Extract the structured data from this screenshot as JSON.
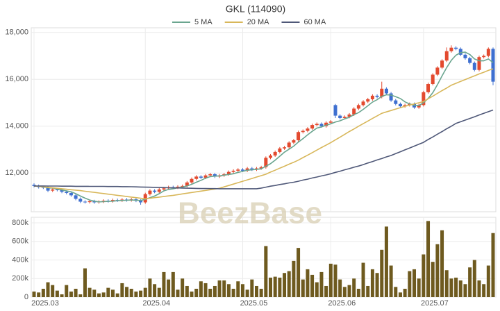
{
  "chart_data": [
    {
      "type": "candlestick",
      "title": "GKL (114090)",
      "watermark": "BeezBase",
      "up_color": "#e34a2f",
      "down_color": "#3e6fd0",
      "open": [
        11500,
        11450,
        11400,
        11380,
        11250,
        11300,
        11280,
        11200,
        11150,
        11050,
        10900,
        10780,
        10760,
        10800,
        10750,
        10780,
        10820,
        10800,
        10850,
        10830,
        10870,
        10840,
        10880,
        10820,
        10750,
        11100,
        11250,
        11200,
        11300,
        11350,
        11400,
        11380,
        11420,
        11450,
        11600,
        11750,
        11850,
        11800,
        11900,
        11950,
        11850,
        11900,
        11950,
        12050,
        12100,
        12150,
        12100,
        12200,
        12150,
        12200,
        12250,
        12650,
        12750,
        12900,
        13050,
        13100,
        13300,
        13400,
        13750,
        13800,
        13900,
        14050,
        14100,
        14000,
        14150,
        14900,
        14450,
        14350,
        14400,
        14500,
        14750,
        14900,
        15050,
        15150,
        15300,
        15250,
        15600,
        15400,
        15100,
        14950,
        14850,
        14900,
        14950,
        14800,
        14900,
        15450,
        15800,
        16200,
        16500,
        16800,
        17200,
        17350,
        17300,
        17050,
        16900,
        16700,
        16400,
        16950,
        17000,
        17300
      ],
      "high": [
        11560,
        11510,
        11460,
        11440,
        11360,
        11360,
        11340,
        11260,
        11210,
        11110,
        10960,
        10840,
        10860,
        10860,
        10840,
        10880,
        10880,
        10910,
        10910,
        10930,
        10930,
        10940,
        10940,
        10880,
        11160,
        11310,
        11310,
        11360,
        11410,
        11460,
        11460,
        11480,
        11510,
        11660,
        11810,
        11910,
        11910,
        11960,
        12010,
        12010,
        11960,
        12010,
        12110,
        12160,
        12210,
        12210,
        12260,
        12260,
        12260,
        12310,
        12710,
        12810,
        12960,
        13110,
        13160,
        13360,
        13460,
        13810,
        13860,
        13960,
        14110,
        14160,
        14160,
        14210,
        14260,
        14950,
        14510,
        14460,
        14560,
        14810,
        14960,
        15110,
        15210,
        15360,
        15360,
        15900,
        15660,
        15460,
        15160,
        15010,
        14960,
        15010,
        15010,
        14960,
        15510,
        15860,
        16260,
        16560,
        16860,
        17360,
        17450,
        17410,
        17360,
        17110,
        16960,
        16760,
        17010,
        17060,
        17360,
        17360
      ],
      "low": [
        11390,
        11340,
        11320,
        11190,
        11190,
        11220,
        11140,
        11090,
        10990,
        10840,
        10720,
        10700,
        10700,
        10690,
        10690,
        10720,
        10740,
        10740,
        10770,
        10770,
        10780,
        10780,
        10760,
        10650,
        10690,
        11040,
        11140,
        11140,
        11240,
        11290,
        11320,
        11320,
        11360,
        11390,
        11540,
        11690,
        11740,
        11740,
        11840,
        11790,
        11790,
        11840,
        11890,
        11990,
        12040,
        12040,
        12040,
        12090,
        12090,
        12140,
        12190,
        12590,
        12690,
        12840,
        12990,
        13040,
        13240,
        13340,
        13690,
        13740,
        13840,
        13990,
        13940,
        13940,
        14090,
        14350,
        14290,
        14290,
        14340,
        14440,
        14690,
        14840,
        14990,
        15090,
        15190,
        15190,
        15340,
        15040,
        14890,
        14790,
        14790,
        14840,
        14740,
        14740,
        14840,
        15390,
        15740,
        16140,
        16440,
        16740,
        17140,
        17240,
        16990,
        16840,
        16640,
        16340,
        16340,
        16890,
        16940,
        15750
      ],
      "close": [
        11450,
        11400,
        11380,
        11250,
        11300,
        11280,
        11200,
        11150,
        11050,
        10900,
        10780,
        10760,
        10800,
        10750,
        10780,
        10820,
        10800,
        10850,
        10830,
        10870,
        10840,
        10880,
        10820,
        10750,
        11100,
        11250,
        11200,
        11300,
        11350,
        11400,
        11380,
        11420,
        11450,
        11600,
        11750,
        11850,
        11800,
        11900,
        11950,
        11850,
        11900,
        11950,
        12050,
        12100,
        12150,
        12100,
        12200,
        12150,
        12200,
        12250,
        12650,
        12750,
        12900,
        13050,
        13100,
        13300,
        13400,
        13750,
        13800,
        13900,
        14050,
        14100,
        14000,
        14150,
        14200,
        14450,
        14350,
        14400,
        14500,
        14750,
        14900,
        15050,
        15150,
        15300,
        15250,
        15600,
        15400,
        15100,
        14950,
        14850,
        14900,
        14950,
        14800,
        14900,
        15450,
        15800,
        16200,
        16500,
        16800,
        17200,
        17350,
        17300,
        17050,
        16900,
        16700,
        16400,
        16950,
        17000,
        17300,
        15900
      ],
      "series": [
        {
          "name": "5 MA",
          "color": "#6aa58f",
          "values": [
            11450,
            11430,
            11410,
            11370,
            11360,
            11320,
            11280,
            11240,
            11200,
            11120,
            11020,
            10930,
            10850,
            10800,
            10770,
            10780,
            10790,
            10800,
            10820,
            10830,
            10840,
            10850,
            10840,
            10830,
            10880,
            10950,
            11020,
            11120,
            11240,
            11300,
            11330,
            11370,
            11400,
            11450,
            11520,
            11610,
            11690,
            11780,
            11850,
            11870,
            11880,
            11910,
            11940,
            11970,
            12030,
            12070,
            12120,
            12140,
            12160,
            12180,
            12290,
            12400,
            12550,
            12720,
            12890,
            13020,
            13150,
            13320,
            13470,
            13630,
            13780,
            13920,
            13970,
            14040,
            14100,
            14180,
            14230,
            14310,
            14380,
            14490,
            14580,
            14720,
            14870,
            15030,
            15130,
            15270,
            15340,
            15330,
            15260,
            15180,
            15040,
            14950,
            14890,
            14880,
            15000,
            15180,
            15430,
            15770,
            16150,
            16500,
            16810,
            17030,
            17140,
            17160,
            17060,
            16870,
            16790,
            16790,
            16870,
            16710
          ]
        },
        {
          "name": "20 MA",
          "color": "#d8b75a",
          "values": [
            11450,
            11430,
            11410,
            11390,
            11370,
            11350,
            11330,
            11310,
            11290,
            11270,
            11250,
            11225,
            11200,
            11175,
            11150,
            11125,
            11100,
            11075,
            11050,
            11025,
            11000,
            10975,
            10950,
            10925,
            10900,
            10925,
            10950,
            10975,
            11000,
            11025,
            11050,
            11080,
            11110,
            11140,
            11170,
            11200,
            11230,
            11260,
            11290,
            11320,
            11350,
            11410,
            11470,
            11530,
            11590,
            11650,
            11710,
            11770,
            11830,
            11890,
            11950,
            12040,
            12120,
            12210,
            12290,
            12380,
            12460,
            12550,
            12660,
            12760,
            12870,
            12980,
            13090,
            13190,
            13300,
            13420,
            13530,
            13650,
            13770,
            13880,
            14000,
            14110,
            14220,
            14330,
            14440,
            14550,
            14610,
            14670,
            14730,
            14790,
            14850,
            14900,
            14950,
            15000,
            15050,
            15170,
            15280,
            15400,
            15520,
            15630,
            15750,
            15830,
            15910,
            15990,
            16070,
            16150,
            16230,
            16300,
            16380,
            16450
          ]
        },
        {
          "name": "60 MA",
          "color": "#4f5878",
          "values": [
            11450,
            11450,
            11450,
            11445,
            11445,
            11445,
            11440,
            11440,
            11440,
            11435,
            11435,
            11435,
            11430,
            11430,
            11430,
            11430,
            11425,
            11425,
            11425,
            11420,
            11420,
            11415,
            11410,
            11405,
            11400,
            11395,
            11390,
            11385,
            11380,
            11375,
            11370,
            11365,
            11360,
            11355,
            11350,
            11345,
            11340,
            11340,
            11335,
            11335,
            11330,
            11330,
            11330,
            11330,
            11330,
            11330,
            11330,
            11330,
            11330,
            11360,
            11400,
            11440,
            11470,
            11510,
            11540,
            11580,
            11610,
            11650,
            11700,
            11740,
            11790,
            11830,
            11880,
            11920,
            11970,
            12030,
            12080,
            12140,
            12190,
            12250,
            12300,
            12360,
            12430,
            12490,
            12560,
            12620,
            12690,
            12750,
            12830,
            12910,
            12990,
            13070,
            13150,
            13230,
            13310,
            13430,
            13540,
            13660,
            13770,
            13890,
            14000,
            14120,
            14190,
            14260,
            14330,
            14400,
            14480,
            14550,
            14620,
            14690
          ]
        }
      ],
      "ylim": [
        10350,
        18200
      ],
      "yticks": [
        {
          "value": 12000,
          "label": "12,000"
        },
        {
          "value": 14000,
          "label": "14,000"
        },
        {
          "value": 16000,
          "label": "16,000"
        },
        {
          "value": 18000,
          "label": "18,000"
        }
      ],
      "grid": true
    },
    {
      "type": "bar",
      "color": "#6e5a1f",
      "categories": [
        "2025.03",
        null,
        null,
        null,
        null,
        null,
        null,
        null,
        null,
        null,
        null,
        null,
        null,
        null,
        null,
        null,
        null,
        null,
        null,
        null,
        null,
        null,
        null,
        null,
        "2025.04",
        null,
        null,
        null,
        null,
        null,
        null,
        null,
        null,
        null,
        null,
        null,
        null,
        null,
        null,
        null,
        null,
        null,
        null,
        null,
        null,
        "2025.05",
        null,
        null,
        null,
        null,
        null,
        null,
        null,
        null,
        null,
        null,
        null,
        null,
        null,
        null,
        null,
        null,
        null,
        null,
        "2025.06",
        null,
        null,
        null,
        null,
        null,
        null,
        null,
        null,
        null,
        null,
        null,
        null,
        null,
        null,
        null,
        null,
        null,
        null,
        null,
        "2025.07",
        null,
        null,
        null,
        null,
        null,
        null,
        null,
        null,
        null,
        null,
        null,
        null,
        null,
        null,
        null
      ],
      "values": [
        60000,
        50000,
        90000,
        160000,
        130000,
        70000,
        30000,
        130000,
        60000,
        90000,
        30000,
        310000,
        100000,
        80000,
        40000,
        50000,
        100000,
        80000,
        40000,
        150000,
        110000,
        90000,
        60000,
        70000,
        100000,
        200000,
        140000,
        100000,
        270000,
        190000,
        270000,
        80000,
        200000,
        120000,
        60000,
        90000,
        170000,
        150000,
        90000,
        120000,
        180000,
        180000,
        140000,
        90000,
        170000,
        140000,
        80000,
        190000,
        120000,
        90000,
        550000,
        210000,
        220000,
        210000,
        260000,
        280000,
        390000,
        530000,
        190000,
        300000,
        240000,
        160000,
        270000,
        120000,
        360000,
        350000,
        190000,
        110000,
        130000,
        200000,
        90000,
        370000,
        120000,
        300000,
        260000,
        510000,
        760000,
        340000,
        110000,
        50000,
        90000,
        280000,
        300000,
        200000,
        460000,
        820000,
        380000,
        570000,
        720000,
        290000,
        200000,
        210000,
        180000,
        140000,
        320000,
        400000,
        180000,
        140000,
        340000,
        690000
      ],
      "ylim": [
        0,
        860000
      ],
      "yticks": [
        0,
        {
          "value": 200000,
          "label": "200k"
        },
        {
          "value": 400000,
          "label": "400k"
        },
        {
          "value": 600000,
          "label": "600k"
        },
        {
          "value": 800000,
          "label": "800k"
        }
      ],
      "grid": true
    }
  ]
}
